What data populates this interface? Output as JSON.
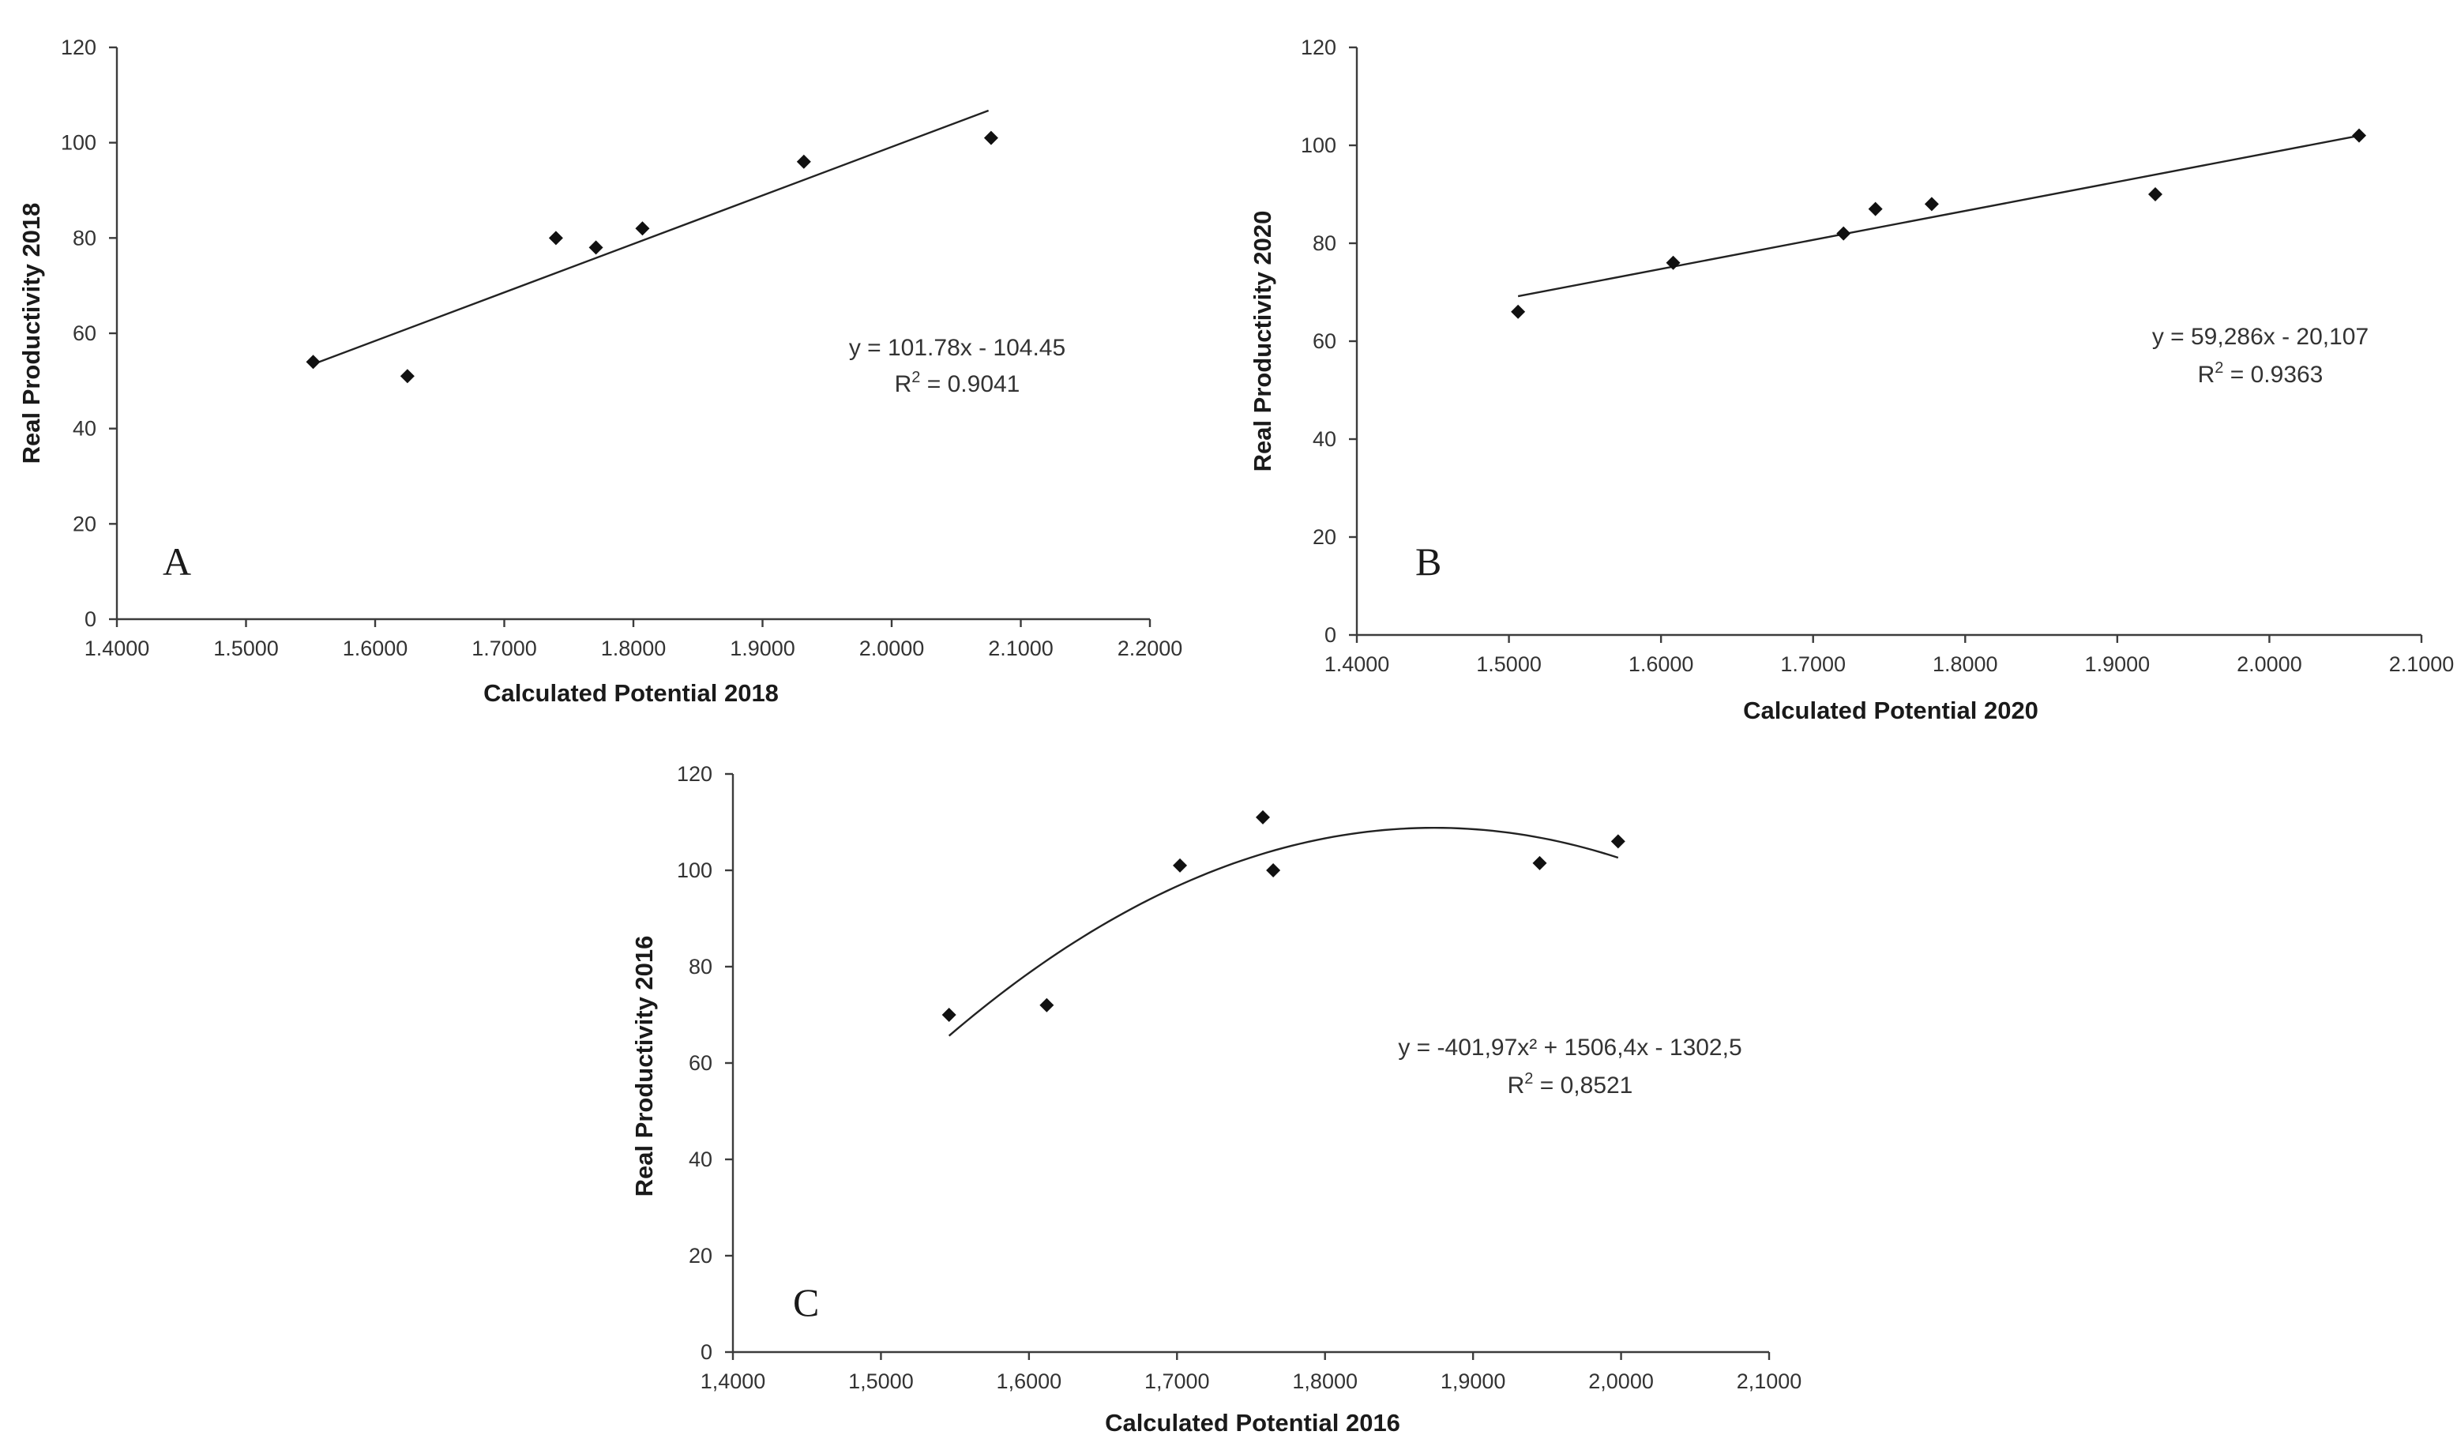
{
  "chart_data": [
    {
      "id": "A",
      "type": "scatter",
      "panel_label": "A",
      "xlabel": "Calculated Potential 2018",
      "ylabel": "Real Productivity 2018",
      "xlim": [
        1.4,
        2.2
      ],
      "ylim": [
        0,
        120
      ],
      "xticks": [
        1.4,
        1.5,
        1.6,
        1.7,
        1.8,
        1.9,
        2.0,
        2.1,
        2.2
      ],
      "xtick_labels": [
        "1.4000",
        "1.5000",
        "1.6000",
        "1.7000",
        "1.8000",
        "1.9000",
        "2.0000",
        "2.1000",
        "2.2000"
      ],
      "yticks": [
        0,
        20,
        40,
        60,
        80,
        100,
        120
      ],
      "ytick_labels": [
        "0",
        "20",
        "40",
        "60",
        "80",
        "100",
        "120"
      ],
      "points": [
        {
          "x": 1.552,
          "y": 54
        },
        {
          "x": 1.625,
          "y": 51
        },
        {
          "x": 1.74,
          "y": 80
        },
        {
          "x": 1.771,
          "y": 78
        },
        {
          "x": 1.807,
          "y": 82
        },
        {
          "x": 1.932,
          "y": 96
        },
        {
          "x": 2.077,
          "y": 101
        }
      ],
      "trendline": {
        "kind": "linear",
        "x_range": [
          1.552,
          2.075
        ],
        "coef": [
          101.78,
          -104.45
        ]
      },
      "equation_line1": "y = 101.78x - 104.45",
      "r2_prefix": "R",
      "r2_sup": "2",
      "r2_value": " = 0.9041"
    },
    {
      "id": "B",
      "type": "scatter",
      "panel_label": "B",
      "xlabel": "Calculated Potential 2020",
      "ylabel": "Real Productivity 2020",
      "xlim": [
        1.4,
        2.1
      ],
      "ylim": [
        0,
        120
      ],
      "xticks": [
        1.4,
        1.5,
        1.6,
        1.7,
        1.8,
        1.9,
        2.0,
        2.1
      ],
      "xtick_labels": [
        "1.4000",
        "1.5000",
        "1.6000",
        "1.7000",
        "1.8000",
        "1.9000",
        "2.0000",
        "2.1000"
      ],
      "yticks": [
        0,
        20,
        40,
        60,
        80,
        100,
        120
      ],
      "ytick_labels": [
        "0",
        "20",
        "40",
        "60",
        "80",
        "100",
        "120"
      ],
      "points": [
        {
          "x": 1.506,
          "y": 66
        },
        {
          "x": 1.608,
          "y": 76
        },
        {
          "x": 1.72,
          "y": 82
        },
        {
          "x": 1.741,
          "y": 87
        },
        {
          "x": 1.778,
          "y": 88
        },
        {
          "x": 1.925,
          "y": 90
        },
        {
          "x": 2.059,
          "y": 102
        }
      ],
      "trendline": {
        "kind": "linear",
        "x_range": [
          1.506,
          2.059
        ],
        "coef": [
          59.286,
          -20.107
        ]
      },
      "equation_line1": "y = 59,286x - 20,107",
      "r2_prefix": "R",
      "r2_sup": "2",
      "r2_value": " = 0.9363"
    },
    {
      "id": "C",
      "type": "scatter",
      "panel_label": "C",
      "xlabel": "Calculated  Potential 2016",
      "ylabel": "Real Productivity 2016",
      "xlim": [
        1.4,
        2.1
      ],
      "ylim": [
        0,
        120
      ],
      "xticks": [
        1.4,
        1.5,
        1.6,
        1.7,
        1.8,
        1.9,
        2.0,
        2.1
      ],
      "xtick_labels": [
        "1,4000",
        "1,5000",
        "1,6000",
        "1,7000",
        "1,8000",
        "1,9000",
        "2,0000",
        "2,1000"
      ],
      "yticks": [
        0,
        20,
        40,
        60,
        80,
        100,
        120
      ],
      "ytick_labels": [
        "0",
        "20",
        "40",
        "60",
        "80",
        "100",
        "120"
      ],
      "points": [
        {
          "x": 1.546,
          "y": 70
        },
        {
          "x": 1.612,
          "y": 72
        },
        {
          "x": 1.702,
          "y": 101
        },
        {
          "x": 1.758,
          "y": 111
        },
        {
          "x": 1.765,
          "y": 100
        },
        {
          "x": 1.945,
          "y": 101.5
        },
        {
          "x": 1.998,
          "y": 106
        }
      ],
      "trendline": {
        "kind": "quadratic",
        "x_range": [
          1.546,
          1.998
        ],
        "coef": [
          -401.97,
          1506.4,
          -1302.5
        ]
      },
      "equation_line1": "y = -401,97x² + 1506,4x - 1302,5",
      "r2_prefix": "R",
      "r2_sup": "2",
      "r2_value": " = 0,8521"
    }
  ]
}
